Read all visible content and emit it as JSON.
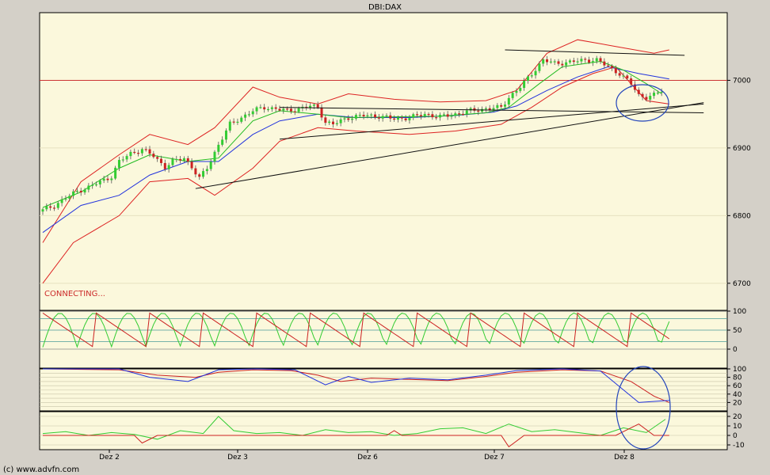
{
  "title": "DBI:DAX",
  "status_text": "CONNECTING...",
  "credit": "(c) www.advfn.com",
  "x_labels": [
    "Dez 2",
    "Dez 3",
    "Dez 6",
    "Dez 7",
    "Dez 8"
  ],
  "colors": {
    "panel_bg": "#fbf8dc",
    "frame_bg": "#d4d0c8",
    "candle_up": "#33cc33",
    "candle_down": "#cc2222",
    "bollinger": "#dd2222",
    "ma_fast": "#22bb22",
    "ma_slow": "#2233dd",
    "resistance_line": "#cc3333",
    "trendline": "#111111",
    "annotation": "#2244bb"
  },
  "chart_data": [
    {
      "type": "candlestick",
      "name": "price",
      "title": "DBI:DAX",
      "ylim": [
        6660,
        7100
      ],
      "y_ticks": [
        6700,
        6800,
        6900,
        7000
      ],
      "y_tick_labels": [
        "6700",
        "6800",
        "6900",
        "7000"
      ],
      "horizontal_line": 7000,
      "x_sessions": [
        "Dez 2",
        "Dez 3",
        "Dez 6",
        "Dez 7",
        "Dez 8"
      ],
      "close_path": [
        [
          0,
          6808
        ],
        [
          3,
          6815
        ],
        [
          6,
          6826
        ],
        [
          9,
          6836
        ],
        [
          12,
          6842
        ],
        [
          15,
          6850
        ],
        [
          18,
          6858
        ],
        [
          20,
          6880
        ],
        [
          23,
          6892
        ],
        [
          26,
          6898
        ],
        [
          29,
          6888
        ],
        [
          32,
          6872
        ],
        [
          34,
          6880
        ],
        [
          37,
          6885
        ],
        [
          39,
          6872
        ],
        [
          41,
          6855
        ],
        [
          43,
          6870
        ],
        [
          46,
          6905
        ],
        [
          49,
          6935
        ],
        [
          52,
          6945
        ],
        [
          55,
          6955
        ],
        [
          58,
          6960
        ],
        [
          61,
          6958
        ],
        [
          64,
          6955
        ],
        [
          67,
          6958
        ],
        [
          70,
          6962
        ],
        [
          72,
          6960
        ],
        [
          74,
          6938
        ],
        [
          76,
          6935
        ],
        [
          80,
          6945
        ],
        [
          84,
          6948
        ],
        [
          88,
          6947
        ],
        [
          92,
          6943
        ],
        [
          96,
          6945
        ],
        [
          100,
          6950
        ],
        [
          104,
          6946
        ],
        [
          108,
          6950
        ],
        [
          112,
          6955
        ],
        [
          116,
          6958
        ],
        [
          120,
          6960
        ],
        [
          122,
          6975
        ],
        [
          125,
          6990
        ],
        [
          128,
          7010
        ],
        [
          131,
          7030
        ],
        [
          134,
          7025
        ],
        [
          138,
          7027
        ],
        [
          142,
          7030
        ],
        [
          145,
          7030
        ],
        [
          148,
          7020
        ],
        [
          151,
          7010
        ],
        [
          154,
          6995
        ],
        [
          156,
          6978
        ],
        [
          158,
          6975
        ],
        [
          160,
          6978
        ],
        [
          162,
          6985
        ]
      ],
      "bollinger_upper": [
        [
          0,
          6760
        ],
        [
          10,
          6850
        ],
        [
          20,
          6890
        ],
        [
          28,
          6920
        ],
        [
          38,
          6905
        ],
        [
          45,
          6930
        ],
        [
          55,
          6990
        ],
        [
          62,
          6975
        ],
        [
          72,
          6965
        ],
        [
          80,
          6980
        ],
        [
          92,
          6972
        ],
        [
          104,
          6968
        ],
        [
          116,
          6970
        ],
        [
          124,
          6985
        ],
        [
          132,
          7040
        ],
        [
          140,
          7060
        ],
        [
          150,
          7050
        ],
        [
          160,
          7040
        ],
        [
          164,
          7045
        ]
      ],
      "bollinger_lower": [
        [
          0,
          6700
        ],
        [
          8,
          6760
        ],
        [
          20,
          6800
        ],
        [
          28,
          6850
        ],
        [
          38,
          6855
        ],
        [
          45,
          6830
        ],
        [
          55,
          6870
        ],
        [
          62,
          6910
        ],
        [
          72,
          6930
        ],
        [
          82,
          6925
        ],
        [
          96,
          6920
        ],
        [
          108,
          6925
        ],
        [
          120,
          6935
        ],
        [
          128,
          6960
        ],
        [
          136,
          6990
        ],
        [
          144,
          7010
        ],
        [
          150,
          7020
        ],
        [
          158,
          6970
        ],
        [
          164,
          6965
        ]
      ],
      "ma_fast": [
        [
          0,
          6812
        ],
        [
          10,
          6835
        ],
        [
          20,
          6870
        ],
        [
          28,
          6890
        ],
        [
          38,
          6880
        ],
        [
          46,
          6885
        ],
        [
          55,
          6940
        ],
        [
          62,
          6955
        ],
        [
          72,
          6950
        ],
        [
          80,
          6945
        ],
        [
          92,
          6946
        ],
        [
          104,
          6947
        ],
        [
          116,
          6952
        ],
        [
          122,
          6960
        ],
        [
          130,
          6995
        ],
        [
          136,
          7020
        ],
        [
          146,
          7028
        ],
        [
          152,
          7015
        ],
        [
          158,
          6995
        ],
        [
          162,
          6980
        ]
      ],
      "ma_slow": [
        [
          0,
          6775
        ],
        [
          10,
          6815
        ],
        [
          20,
          6830
        ],
        [
          28,
          6860
        ],
        [
          38,
          6880
        ],
        [
          46,
          6880
        ],
        [
          55,
          6920
        ],
        [
          62,
          6940
        ],
        [
          72,
          6950
        ],
        [
          82,
          6945
        ],
        [
          96,
          6945
        ],
        [
          108,
          6948
        ],
        [
          118,
          6953
        ],
        [
          124,
          6962
        ],
        [
          132,
          6985
        ],
        [
          140,
          7005
        ],
        [
          148,
          7020
        ],
        [
          156,
          7010
        ],
        [
          164,
          7002
        ]
      ],
      "trendlines": [
        {
          "x": [
            40,
            173
          ],
          "y": [
            6840,
            6967
          ]
        },
        {
          "x": [
            62,
            173
          ],
          "y": [
            6913,
            6965
          ]
        },
        {
          "x": [
            62,
            173
          ],
          "y": [
            6960,
            6952
          ]
        },
        {
          "x": [
            121,
            168
          ],
          "y": [
            7045,
            7037
          ]
        }
      ]
    },
    {
      "type": "line",
      "name": "oscillator-1",
      "ylim": [
        -50,
        100
      ],
      "y_ticks": [
        100,
        50,
        0
      ],
      "y_tick_labels": [
        "100",
        "50",
        "0"
      ],
      "reference_lines": [
        100,
        80,
        50,
        20,
        0
      ]
    },
    {
      "type": "line",
      "name": "oscillator-2",
      "ylim": [
        0,
        100
      ],
      "y_ticks": [
        100,
        80,
        60,
        40,
        20
      ],
      "y_tick_labels": [
        "100",
        "80",
        "60",
        "40",
        "20"
      ],
      "series": [
        {
          "color": "#cc2222",
          "values": [
            [
              0,
              100
            ],
            [
              20,
              98
            ],
            [
              30,
              85
            ],
            [
              40,
              80
            ],
            [
              46,
              92
            ],
            [
              55,
              98
            ],
            [
              65,
              96
            ],
            [
              72,
              85
            ],
            [
              78,
              70
            ],
            [
              86,
              78
            ],
            [
              96,
              75
            ],
            [
              106,
              72
            ],
            [
              116,
              82
            ],
            [
              124,
              92
            ],
            [
              136,
              98
            ],
            [
              146,
              95
            ],
            [
              154,
              70
            ],
            [
              160,
              35
            ],
            [
              164,
              20
            ]
          ]
        },
        {
          "color": "#2233dd",
          "values": [
            [
              0,
              100
            ],
            [
              20,
              100
            ],
            [
              28,
              80
            ],
            [
              38,
              70
            ],
            [
              46,
              98
            ],
            [
              56,
              100
            ],
            [
              66,
              98
            ],
            [
              74,
              62
            ],
            [
              80,
              82
            ],
            [
              86,
              68
            ],
            [
              96,
              78
            ],
            [
              106,
              74
            ],
            [
              116,
              85
            ],
            [
              124,
              96
            ],
            [
              136,
              100
            ],
            [
              146,
              95
            ],
            [
              152,
              50
            ],
            [
              156,
              20
            ],
            [
              164,
              25
            ]
          ]
        }
      ]
    },
    {
      "type": "line",
      "name": "oscillator-3",
      "ylim": [
        -15,
        25
      ],
      "y_ticks": [
        20,
        10,
        0,
        -10
      ],
      "y_tick_labels": [
        "20",
        "10",
        "0",
        "-10"
      ],
      "series": [
        {
          "color": "#33cc33",
          "values": [
            [
              0,
              2
            ],
            [
              6,
              4
            ],
            [
              12,
              0
            ],
            [
              18,
              3
            ],
            [
              24,
              1
            ],
            [
              30,
              -4
            ],
            [
              36,
              5
            ],
            [
              42,
              2
            ],
            [
              46,
              20
            ],
            [
              50,
              5
            ],
            [
              56,
              2
            ],
            [
              62,
              3
            ],
            [
              68,
              0
            ],
            [
              74,
              6
            ],
            [
              80,
              3
            ],
            [
              86,
              4
            ],
            [
              92,
              0
            ],
            [
              98,
              2
            ],
            [
              104,
              7
            ],
            [
              110,
              8
            ],
            [
              116,
              2
            ],
            [
              122,
              12
            ],
            [
              128,
              4
            ],
            [
              134,
              6
            ],
            [
              140,
              3
            ],
            [
              146,
              0
            ],
            [
              152,
              8
            ],
            [
              158,
              3
            ],
            [
              163,
              17
            ]
          ]
        },
        {
          "color": "#cc2222",
          "values": [
            [
              0,
              0
            ],
            [
              24,
              0
            ],
            [
              26,
              -8
            ],
            [
              30,
              0
            ],
            [
              90,
              0
            ],
            [
              92,
              5
            ],
            [
              94,
              0
            ],
            [
              120,
              0
            ],
            [
              122,
              -12
            ],
            [
              126,
              0
            ],
            [
              150,
              0
            ],
            [
              156,
              12
            ],
            [
              160,
              0
            ],
            [
              164,
              0
            ]
          ]
        }
      ]
    }
  ]
}
